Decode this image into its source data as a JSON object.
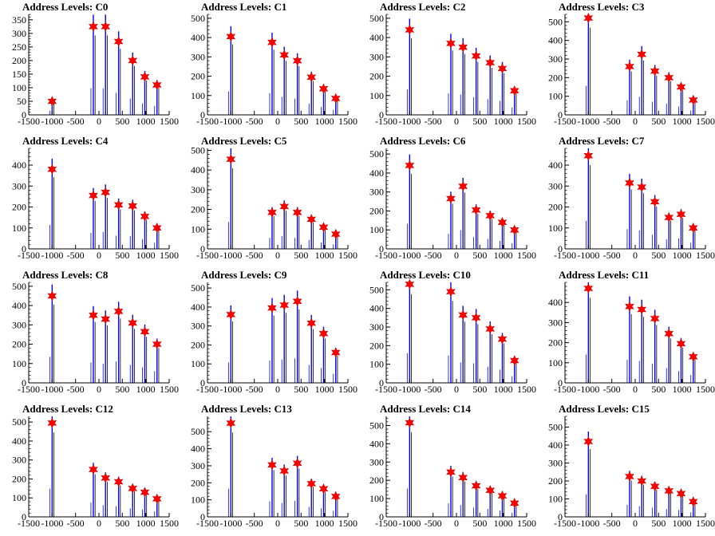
{
  "title_prefix": "Address Levels: ",
  "chart_data": [
    {
      "type": "bar",
      "title": "Address Levels: C0",
      "xlim": [
        -1500,
        1500
      ],
      "ylim": [
        0,
        370
      ],
      "yticks": [
        0,
        50,
        100,
        150,
        200,
        250,
        300,
        350
      ],
      "xticks": [
        -1500,
        -1000,
        -500,
        0,
        500,
        1000,
        1500
      ],
      "star_x": [
        -1000,
        -120,
        140,
        420,
        720,
        980,
        1240
      ],
      "star_y": [
        50,
        325,
        325,
        270,
        200,
        140,
        110
      ]
    },
    {
      "type": "bar",
      "title": "Address Levels: C1",
      "xlim": [
        -1500,
        1500
      ],
      "ylim": [
        0,
        520
      ],
      "yticks": [
        0,
        100,
        200,
        300,
        400,
        500
      ],
      "xticks": [
        -1500,
        -1000,
        -500,
        0,
        500,
        1000,
        1500
      ],
      "star_x": [
        -1000,
        -120,
        140,
        420,
        720,
        980,
        1240
      ],
      "star_y": [
        405,
        375,
        310,
        280,
        195,
        135,
        85
      ]
    },
    {
      "type": "bar",
      "title": "Address Levels: C2",
      "xlim": [
        -1500,
        1500
      ],
      "ylim": [
        0,
        520
      ],
      "yticks": [
        0,
        100,
        200,
        300,
        400,
        500
      ],
      "xticks": [
        -1500,
        -1000,
        -500,
        0,
        500,
        1000,
        1500
      ],
      "star_x": [
        -1000,
        -120,
        140,
        420,
        720,
        980,
        1240
      ],
      "star_y": [
        440,
        370,
        350,
        305,
        270,
        240,
        125
      ]
    },
    {
      "type": "bar",
      "title": "Address Levels: C3",
      "xlim": [
        -1500,
        1500
      ],
      "ylim": [
        0,
        540
      ],
      "yticks": [
        0,
        100,
        200,
        300,
        400,
        500
      ],
      "xticks": [
        -1500,
        -1000,
        -500,
        0,
        500,
        1000,
        1500
      ],
      "star_x": [
        -1000,
        -120,
        140,
        420,
        720,
        980,
        1240
      ],
      "star_y": [
        520,
        260,
        325,
        235,
        200,
        150,
        80
      ]
    },
    {
      "type": "bar",
      "title": "Address Levels: C4",
      "xlim": [
        -1500,
        1500
      ],
      "ylim": [
        0,
        480
      ],
      "yticks": [
        0,
        100,
        200,
        300,
        400
      ],
      "xticks": [
        -1500,
        -1000,
        -500,
        0,
        500,
        1000,
        1500
      ],
      "star_x": [
        -1000,
        -120,
        140,
        420,
        720,
        980,
        1240
      ],
      "star_y": [
        380,
        255,
        270,
        210,
        205,
        155,
        100
      ]
    },
    {
      "type": "bar",
      "title": "Address Levels: C5",
      "xlim": [
        -1500,
        1500
      ],
      "ylim": [
        0,
        510
      ],
      "yticks": [
        0,
        100,
        200,
        300,
        400,
        500
      ],
      "xticks": [
        -1500,
        -1000,
        -500,
        0,
        500,
        1000,
        1500
      ],
      "star_x": [
        -1000,
        -120,
        140,
        420,
        720,
        980,
        1240
      ],
      "star_y": [
        455,
        185,
        215,
        185,
        150,
        110,
        75
      ]
    },
    {
      "type": "bar",
      "title": "Address Levels: C6",
      "xlim": [
        -1500,
        1500
      ],
      "ylim": [
        0,
        530
      ],
      "yticks": [
        0,
        100,
        200,
        300,
        400,
        500
      ],
      "xticks": [
        -1500,
        -1000,
        -500,
        0,
        500,
        1000,
        1500
      ],
      "star_x": [
        -1000,
        -120,
        140,
        420,
        720,
        980,
        1240
      ],
      "star_y": [
        440,
        265,
        330,
        205,
        175,
        140,
        100
      ]
    },
    {
      "type": "bar",
      "title": "Address Levels: C7",
      "xlim": [
        -1500,
        1500
      ],
      "ylim": [
        0,
        480
      ],
      "yticks": [
        0,
        100,
        200,
        300,
        400
      ],
      "xticks": [
        -1500,
        -1000,
        -500,
        0,
        500,
        1000,
        1500
      ],
      "star_x": [
        -1000,
        -120,
        140,
        420,
        720,
        980,
        1240
      ],
      "star_y": [
        445,
        315,
        295,
        225,
        150,
        165,
        100
      ]
    },
    {
      "type": "bar",
      "title": "Address Levels: C8",
      "xlim": [
        -1500,
        1500
      ],
      "ylim": [
        0,
        520
      ],
      "yticks": [
        0,
        100,
        200,
        300,
        400,
        500
      ],
      "xticks": [
        -1500,
        -1000,
        -500,
        0,
        500,
        1000,
        1500
      ],
      "star_x": [
        -1000,
        -120,
        140,
        420,
        720,
        980,
        1240
      ],
      "star_y": [
        450,
        350,
        330,
        370,
        310,
        265,
        200
      ]
    },
    {
      "type": "bar",
      "title": "Address Levels: C9",
      "xlim": [
        -1500,
        1500
      ],
      "ylim": [
        0,
        530
      ],
      "yticks": [
        0,
        100,
        200,
        300,
        400,
        500
      ],
      "xticks": [
        -1500,
        -1000,
        -500,
        0,
        500,
        1000,
        1500
      ],
      "star_x": [
        -1000,
        -120,
        140,
        420,
        720,
        980,
        1240
      ],
      "star_y": [
        360,
        395,
        410,
        430,
        315,
        260,
        160
      ]
    },
    {
      "type": "bar",
      "title": "Address Levels: C10",
      "xlim": [
        -1500,
        1500
      ],
      "ylim": [
        0,
        540
      ],
      "yticks": [
        0,
        100,
        200,
        300,
        400,
        500
      ],
      "xticks": [
        -1500,
        -1000,
        -500,
        0,
        500,
        1000,
        1500
      ],
      "star_x": [
        -1000,
        -120,
        140,
        420,
        720,
        980,
        1240
      ],
      "star_y": [
        530,
        490,
        365,
        350,
        290,
        235,
        120
      ]
    },
    {
      "type": "bar",
      "title": "Address Levels: C11",
      "xlim": [
        -1500,
        1500
      ],
      "ylim": [
        0,
        500
      ],
      "yticks": [
        0,
        100,
        200,
        300,
        400
      ],
      "xticks": [
        -1500,
        -1000,
        -500,
        0,
        500,
        1000,
        1500
      ],
      "star_x": [
        -1000,
        -120,
        140,
        420,
        720,
        980,
        1240
      ],
      "star_y": [
        470,
        380,
        365,
        320,
        245,
        195,
        130
      ]
    },
    {
      "type": "bar",
      "title": "Address Levels: C12",
      "xlim": [
        -1500,
        1500
      ],
      "ylim": [
        0,
        530
      ],
      "yticks": [
        0,
        100,
        200,
        300,
        400,
        500
      ],
      "xticks": [
        -1500,
        -1000,
        -500,
        0,
        500,
        1000,
        1500
      ],
      "star_x": [
        -1000,
        -120,
        140,
        420,
        720,
        980,
        1240
      ],
      "star_y": [
        495,
        250,
        205,
        185,
        150,
        130,
        95
      ]
    },
    {
      "type": "bar",
      "title": "Address Levels: C13",
      "xlim": [
        -1500,
        1500
      ],
      "ylim": [
        0,
        590
      ],
      "yticks": [
        0,
        100,
        200,
        300,
        400,
        500
      ],
      "xticks": [
        -1500,
        -1000,
        -500,
        0,
        500,
        1000,
        1500
      ],
      "star_x": [
        -1000,
        -120,
        140,
        420,
        720,
        980,
        1240
      ],
      "star_y": [
        550,
        305,
        270,
        315,
        195,
        165,
        120
      ]
    },
    {
      "type": "bar",
      "title": "Address Levels: C14",
      "xlim": [
        -1500,
        1500
      ],
      "ylim": [
        0,
        550
      ],
      "yticks": [
        0,
        100,
        200,
        300,
        400,
        500
      ],
      "xticks": [
        -1500,
        -1000,
        -500,
        0,
        500,
        1000,
        1500
      ],
      "star_x": [
        -1000,
        -120,
        140,
        420,
        720,
        980,
        1240
      ],
      "star_y": [
        515,
        245,
        215,
        170,
        145,
        115,
        75
      ]
    },
    {
      "type": "bar",
      "title": "Address Levels: C15",
      "xlim": [
        -1500,
        1500
      ],
      "ylim": [
        0,
        560
      ],
      "yticks": [
        0,
        100,
        200,
        300,
        400,
        500
      ],
      "xticks": [
        -1500,
        -1000,
        -500,
        0,
        500,
        1000,
        1500
      ],
      "star_x": [
        -1000,
        -120,
        140,
        420,
        720,
        980,
        1240
      ],
      "star_y": [
        420,
        225,
        200,
        170,
        145,
        130,
        85
      ]
    }
  ],
  "colors": {
    "bar": "#0000ff",
    "bar_dark": "#000000",
    "marker": "#ff0000",
    "marker_stroke": "#cc0000",
    "axis": "#000000"
  }
}
